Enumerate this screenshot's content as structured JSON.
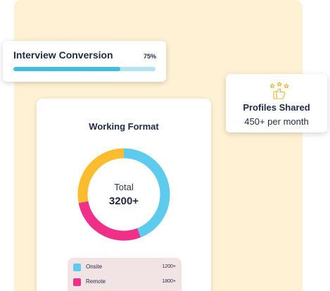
{
  "interview_conversion": {
    "title": "Interview Conversion",
    "percent_label": "75%",
    "progress": 0.75
  },
  "profiles_shared": {
    "icon": "thumbs-up-stars-icon",
    "title": "Profiles Shared",
    "subtitle": "450+ per month"
  },
  "working_format": {
    "title": "Working Format",
    "center_label": "Total",
    "center_value": "3200+",
    "legend": [
      {
        "name": "Onsite",
        "value": "1200+",
        "color": "#5ccbed"
      },
      {
        "name": "Remote",
        "value": "1800+",
        "color": "#ef2f88"
      }
    ]
  },
  "chart_data": {
    "type": "pie",
    "title": "Working Format",
    "categories": [
      "Onsite",
      "Remote",
      ""
    ],
    "values": [
      44,
      28,
      28
    ],
    "colors": [
      "#5ccbed",
      "#ef2f88",
      "#fbbc2e"
    ]
  },
  "colors": {
    "backdrop": "#fff1d4",
    "progress_fill": "#3fbde3",
    "progress_track": "#b4e3f4",
    "icon_gold": "#e8b52c"
  }
}
